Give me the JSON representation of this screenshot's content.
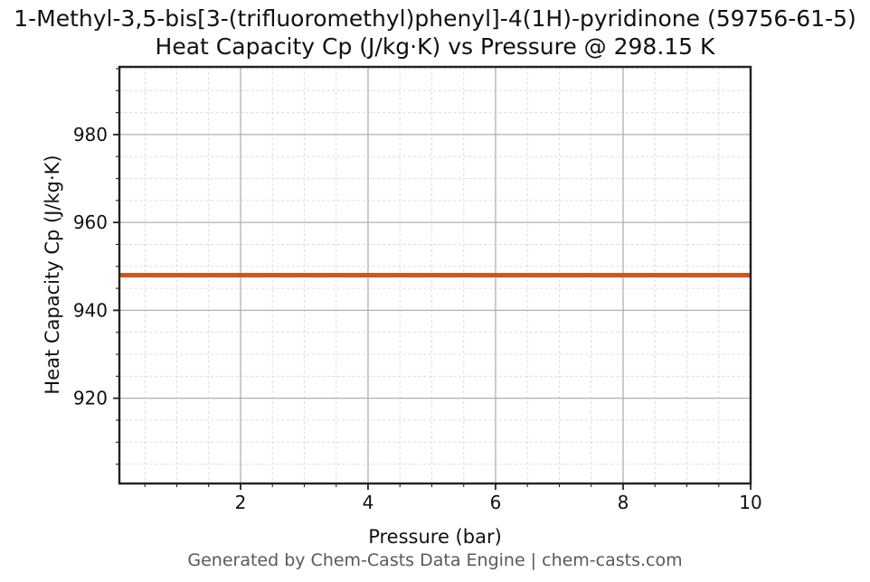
{
  "chart_data": {
    "type": "line",
    "title_line1": "1-Methyl-3,5-bis[3-(trifluoromethyl)phenyl]-4(1H)-pyridinone (59756-61-5)",
    "title_line2": "Heat Capacity Cp (J/kg·K) vs Pressure @ 298.15 K",
    "xlabel": "Pressure (bar)",
    "ylabel": "Heat Capacity Cp (J/kg·K)",
    "xlim": [
      0.1,
      10
    ],
    "ylim": [
      900.6,
      995.4
    ],
    "x_major_ticks": [
      2,
      4,
      6,
      8,
      10
    ],
    "x_minor_step": 0.5,
    "y_major_ticks": [
      920,
      940,
      960,
      980
    ],
    "y_minor_step": 5,
    "grid": {
      "major": "solid",
      "minor": "dashed"
    },
    "legend": "none",
    "series": [
      {
        "name": "Heat Capacity Cp",
        "x": [
          0.1,
          10
        ],
        "y": [
          948,
          948
        ],
        "constant_value": 948,
        "units": "J/kg·K",
        "color": "#d2541e"
      }
    ],
    "conditions": {
      "temperature_K": "298.15"
    }
  },
  "footer": {
    "text": "Generated by Chem-Casts Data Engine | chem-casts.com"
  },
  "colors": {
    "line": "#d2541e",
    "grid_major": "#b0b0b0",
    "grid_minor": "#dcdcdc",
    "spine": "#222222",
    "tick_label": "#111111",
    "footer_text": "#595959",
    "background": "#ffffff"
  }
}
